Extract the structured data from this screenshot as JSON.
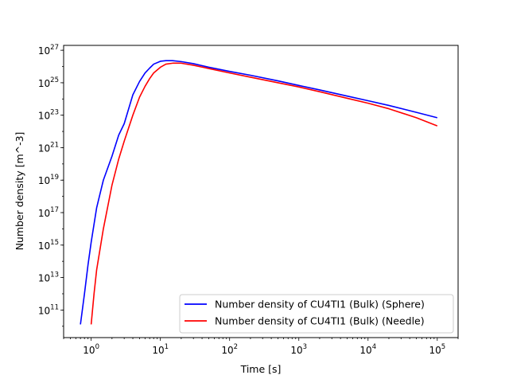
{
  "chart_data": {
    "type": "line",
    "title": "",
    "xlabel": "Time [s]",
    "ylabel": "Number density [m^-3]",
    "xscale": "log",
    "yscale": "log",
    "xlim": [
      0.4,
      200000
    ],
    "ylim": [
      2000000000.0,
      2e+27
    ],
    "x_ticks": [
      {
        "value": 1,
        "base": "10",
        "exp": "0"
      },
      {
        "value": 10,
        "base": "10",
        "exp": "1"
      },
      {
        "value": 100,
        "base": "10",
        "exp": "2"
      },
      {
        "value": 1000,
        "base": "10",
        "exp": "3"
      },
      {
        "value": 10000,
        "base": "10",
        "exp": "4"
      },
      {
        "value": 100000,
        "base": "10",
        "exp": "5"
      }
    ],
    "y_ticks": [
      {
        "value": 100000000000.0,
        "base": "10",
        "exp": "11"
      },
      {
        "value": 10000000000000.0,
        "base": "10",
        "exp": "13"
      },
      {
        "value": 1000000000000000.0,
        "base": "10",
        "exp": "15"
      },
      {
        "value": 1e+17,
        "base": "10",
        "exp": "17"
      },
      {
        "value": 1e+19,
        "base": "10",
        "exp": "19"
      },
      {
        "value": 1e+21,
        "base": "10",
        "exp": "21"
      },
      {
        "value": 1e+23,
        "base": "10",
        "exp": "23"
      },
      {
        "value": 1e+25,
        "base": "10",
        "exp": "25"
      },
      {
        "value": 1e+27,
        "base": "10",
        "exp": "27"
      }
    ],
    "grid": false,
    "legend_position": "lower-right",
    "series": [
      {
        "name": "Number density of CU4TI1 (Bulk) (Sphere)",
        "color": "#0000ff",
        "x": [
          0.7,
          0.8,
          0.9,
          1.0,
          1.2,
          1.5,
          2.0,
          2.5,
          3.0,
          4.0,
          5.0,
          6.0,
          7.0,
          8.0,
          10,
          12,
          15,
          20,
          30,
          50,
          100,
          200,
          500,
          1000,
          2000,
          5000,
          10000,
          20000,
          50000,
          100000
        ],
        "y": [
          13000000000.0,
          1000000000000.0,
          60000000000000.0,
          1500000000000000.0,
          2e+17,
          1e+19,
          3e+20,
          6e+21,
          3e+22,
          1.8e+24,
          1.2e+25,
          4e+25,
          8e+25,
          1.4e+26,
          2.1e+26,
          2.3e+26,
          2.3e+26,
          2e+26,
          1.5e+26,
          9e+25,
          5e+25,
          2.9e+25,
          1.3e+25,
          6.8e+24,
          3.6e+24,
          1.5e+24,
          7.8e+23,
          4e+23,
          1.5e+23,
          7e+22
        ]
      },
      {
        "name": "Number density of CU4TI1 (Bulk) (Needle)",
        "color": "#ff0000",
        "x": [
          1.0,
          1.1,
          1.2,
          1.5,
          2.0,
          2.5,
          3.0,
          4.0,
          5.0,
          6.0,
          7.0,
          8.0,
          10,
          12,
          15,
          20,
          30,
          50,
          100,
          200,
          500,
          1000,
          2000,
          5000,
          10000,
          20000,
          50000,
          100000
        ],
        "y": [
          13000000000.0,
          1000000000000.0,
          30000000000000.0,
          1e+16,
          5e+18,
          2e+20,
          2.5e+21,
          1e+23,
          1.3e+24,
          6e+24,
          1.8e+25,
          4e+25,
          9e+25,
          1.4e+26,
          1.6e+26,
          1.6e+26,
          1.2e+26,
          7.5e+25,
          4e+25,
          2.2e+25,
          1e+25,
          5.5e+24,
          2.8e+24,
          1.1e+24,
          5.5e+23,
          2.5e+23,
          7e+22,
          2.2e+22
        ]
      }
    ]
  }
}
